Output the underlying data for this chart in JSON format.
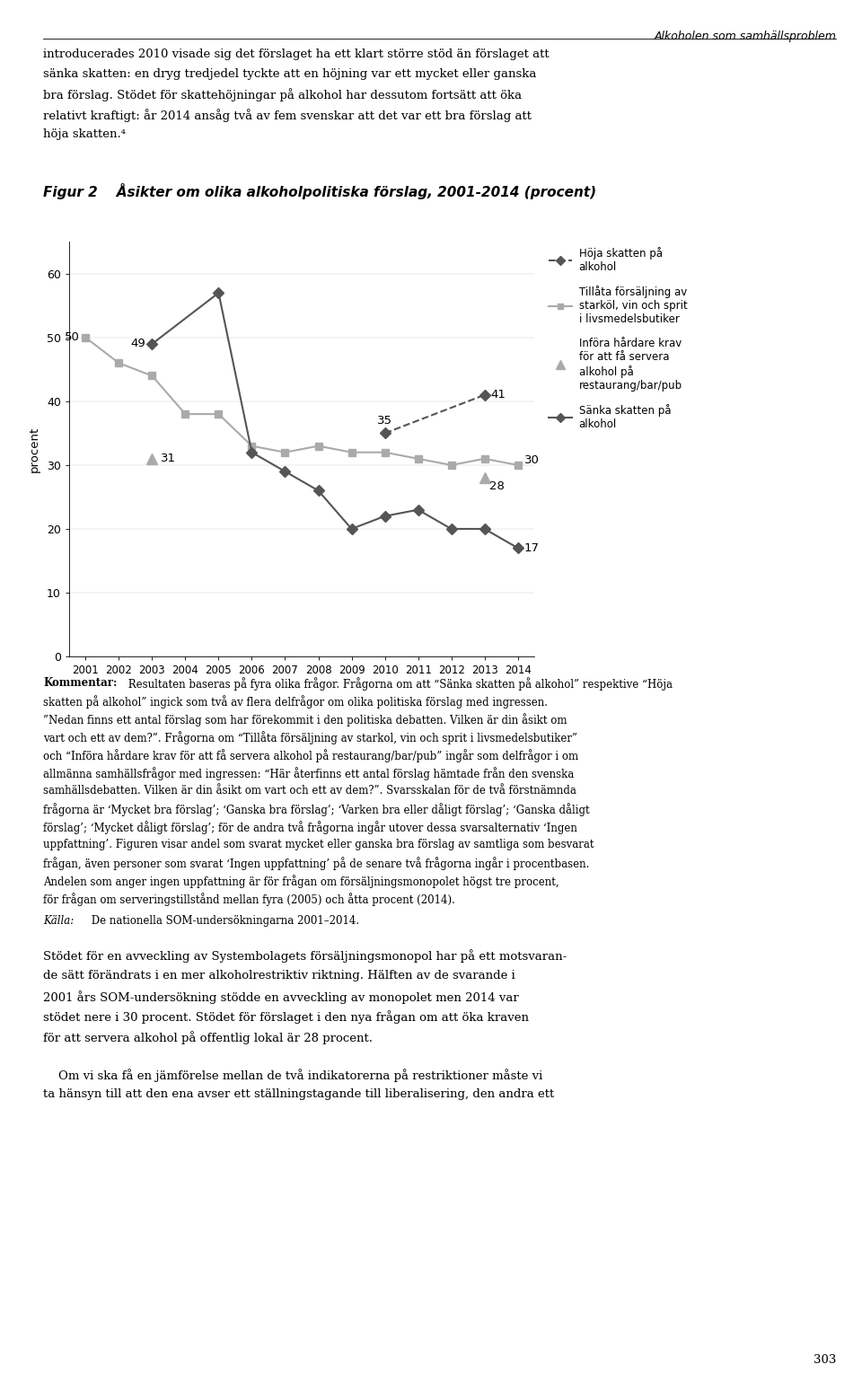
{
  "title": "Figur 2    Åsikter om olika alkoholpolitiska förslag, 2001-2014 (procent)",
  "ylabel": "procent",
  "years": [
    2001,
    2002,
    2003,
    2004,
    2005,
    2006,
    2007,
    2008,
    2009,
    2010,
    2011,
    2012,
    2013,
    2014
  ],
  "hoja_skatten": [
    null,
    null,
    null,
    null,
    null,
    null,
    null,
    null,
    null,
    35,
    null,
    null,
    41,
    null
  ],
  "tillata_forsaljning": [
    50,
    46,
    44,
    38,
    38,
    33,
    32,
    33,
    32,
    32,
    31,
    30,
    31,
    30
  ],
  "infora_hardare": [
    null,
    null,
    31,
    null,
    null,
    null,
    null,
    null,
    null,
    null,
    null,
    null,
    28,
    null
  ],
  "sanka_skatten": [
    null,
    null,
    49,
    null,
    57,
    32,
    29,
    26,
    20,
    22,
    23,
    20,
    20,
    17
  ],
  "ylim": [
    0,
    65
  ],
  "yticks": [
    0,
    10,
    20,
    30,
    40,
    50,
    60
  ],
  "color_dark": "#555555",
  "color_light": "#aaaaaa",
  "background": "#ffffff",
  "header_text": "Alkoholen som samhällsproblem",
  "page_number": "303",
  "intro_text": "introducerades 2010 visade sig det förslaget ha ett klart större stöd än förslaget att sänka skatten: en dryg tredjedel tyckte att en höjning var ett mycket eller ganska bra förslag. Stödet för skattehöjningar på alkohol har dessutom fortsätt att öka relativt kraftigt: år 2014 ansåg två av fem svenskar att det var ett bra förslag att höja skatten.⁴",
  "kommentar_label": "Kommentar:",
  "kommentar_text": " Resultaten baseras på fyra olika frågor. Frågorna om att “Sänka skatten på alkohol” respektive “Höja skatten på alkohol” ingick som två av flera delfrågor om olika politiska förslag med ingressen. ”Nedan finns ett antal förslag som har förekommit i den politiska debatten. Vilken är din åsikt om vart och ett av dem?”. Frågorna om “Tillåta försäljning av starkol, vin och sprit i livsmedelsbutiker” och “Införa hårdare krav för att få servera alkohol på restaurang/bar/pub” ingår som delfrågor i om allmänna samhällsfrågor med ingressen: “Här återfinns ett antal förslag hämtade från den svenska samhällsdebatten. Vilken är din åsikt om vart och ett av dem?”. Svarsskalan för de två förstnämnda frågorna är ‘Mycket bra förslag’; ‘Ganska bra förslag’; ‘Varken bra eller dåligt förslag’; ‘Ganska dåligt förslag’; ‘Mycket dåligt förslag’; för de andra två frågorna ingår utover dessa svarsalternativ ‘Ingen uppfattning’. Figuren visar andel som svarat mycket eller ganska bra förslag av samtliga som besvarat frågan, även personer som svarat ‘Ingen uppfattning’ på de senare två frågorna ingår i procentbasen. Andelen som anger ingen uppfattning är för frågan om försäljningsmonopolet högst tre procent, för frågan om serveringstillstånd mellan fyra (2005) och åtta procent (2014).",
  "kalla_label": "Källa:",
  "kalla_text": " De nationella SOM-undersökningarna 2001–2014.",
  "closing_text_1": "Stödet för en avveckling av Systembolagets försäljningsmonopol har på ett motsvarande sätt förändrats i en mer alkoholrestriktiv riktning. Hälften av de svarande i 2001 års SOM-undersökning stödde en avveckling av monopolet men 2014 var stödet nere i 30 procent. Stödet för förslaget i den nya frågan om att öka kraven för att servera alkohol på offentlig lokal är 28 procent.",
  "closing_text_2": "Om vi ska få en jämförelse mellan de två indikatorerna på restriktioner måste vi ta hänsyn till att den ena avser ett ställningstagande till liberalisering, den andra ett",
  "legend_entries": [
    "Höja skatten på\nalkohol",
    "Tillåta försäljning av\nstarköl, vin och sprit\ni livsmedelsbutiker",
    "Införa hårdare krav\nför att få servera\nalkohol på\nrestaurang/bar/pub",
    "Sänka skatten på\nalkohol"
  ]
}
